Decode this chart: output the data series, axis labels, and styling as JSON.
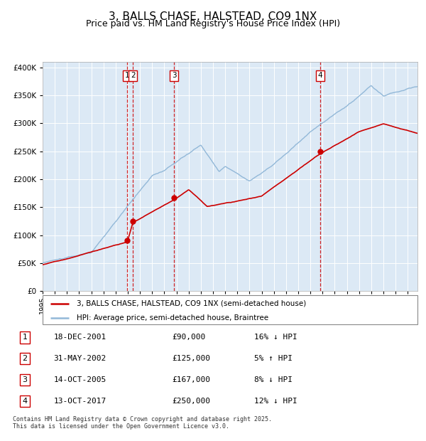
{
  "title": "3, BALLS CHASE, HALSTEAD, CO9 1NX",
  "subtitle": "Price paid vs. HM Land Registry's House Price Index (HPI)",
  "title_fontsize": 11,
  "subtitle_fontsize": 9,
  "bg_color": "#dce9f5",
  "grid_color": "#ffffff",
  "hpi_color": "#92b8d8",
  "price_color": "#cc0000",
  "transactions": [
    {
      "num": 1,
      "x_year": 2001.96,
      "price": 90000,
      "label": "18-DEC-2001",
      "amount": "£90,000",
      "pct": "16% ↓ HPI"
    },
    {
      "num": 2,
      "x_year": 2002.42,
      "price": 125000,
      "label": "31-MAY-2002",
      "amount": "£125,000",
      "pct": "5% ↑ HPI"
    },
    {
      "num": 3,
      "x_year": 2005.79,
      "price": 167000,
      "label": "14-OCT-2005",
      "amount": "£167,000",
      "pct": "8% ↓ HPI"
    },
    {
      "num": 4,
      "x_year": 2017.79,
      "price": 250000,
      "label": "13-OCT-2017",
      "amount": "£250,000",
      "pct": "12% ↓ HPI"
    }
  ],
  "ylim": [
    0,
    410000
  ],
  "xlim_start": 1995.0,
  "xlim_end": 2025.8,
  "yticks": [
    0,
    50000,
    100000,
    150000,
    200000,
    250000,
    300000,
    350000,
    400000
  ],
  "legend_line1": "3, BALLS CHASE, HALSTEAD, CO9 1NX (semi-detached house)",
  "legend_line2": "HPI: Average price, semi-detached house, Braintree",
  "footer": "Contains HM Land Registry data © Crown copyright and database right 2025.\nThis data is licensed under the Open Government Licence v3.0."
}
